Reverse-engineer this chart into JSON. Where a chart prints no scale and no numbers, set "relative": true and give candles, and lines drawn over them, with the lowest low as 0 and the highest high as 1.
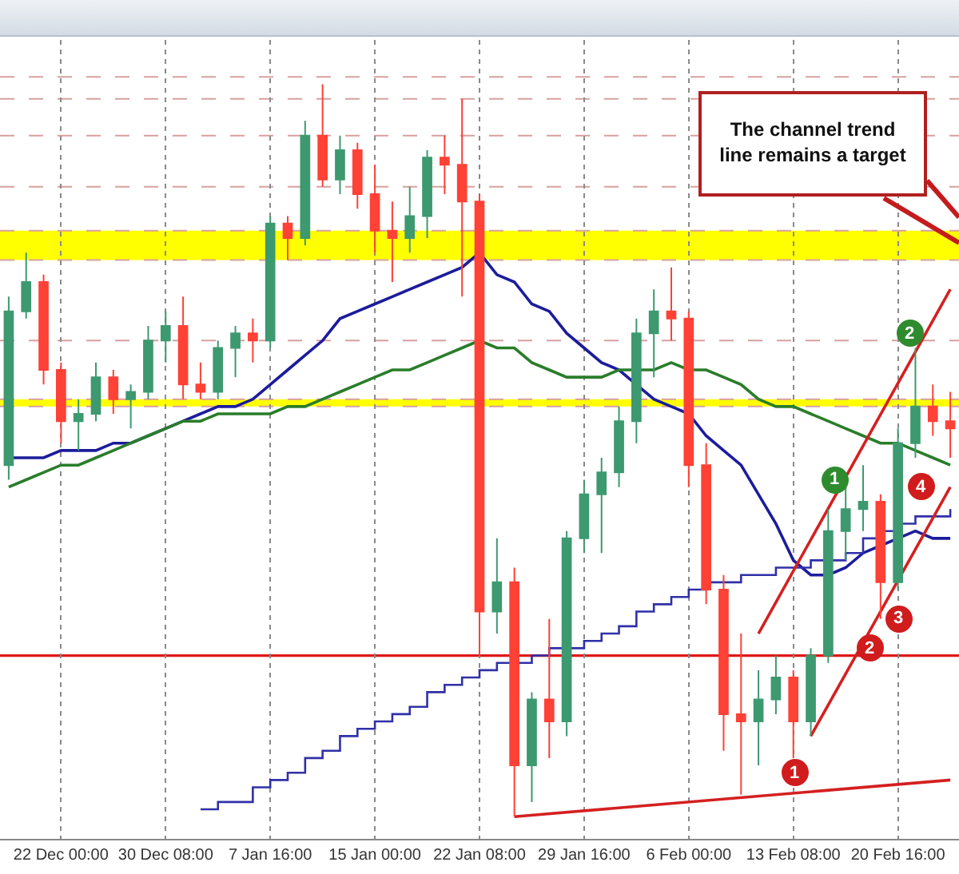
{
  "chart_data": {
    "type": "candlestick",
    "relative": true,
    "grid": "x",
    "categories": [
      null,
      null,
      null,
      "22 Dec 00:00",
      null,
      null,
      null,
      null,
      null,
      "30 Dec 08:00",
      null,
      null,
      null,
      null,
      null,
      "7 Jan 16:00",
      null,
      null,
      null,
      null,
      null,
      "15 Jan 00:00",
      null,
      null,
      null,
      null,
      null,
      "22 Jan 08:00",
      null,
      null,
      null,
      null,
      null,
      "29 Jan 16:00",
      null,
      null,
      null,
      null,
      null,
      "6 Feb 00:00",
      null,
      null,
      null,
      null,
      null,
      "13 Feb 08:00",
      null,
      null,
      null,
      null,
      null,
      "20 Feb 16:00",
      null,
      null,
      null
    ],
    "ohlc": [
      [
        0.48,
        0.71,
        0.46,
        0.69
      ],
      [
        0.69,
        0.77,
        0.68,
        0.73
      ],
      [
        0.73,
        0.74,
        0.59,
        0.61
      ],
      [
        0.61,
        0.62,
        0.51,
        0.54
      ],
      [
        0.54,
        0.57,
        0.5,
        0.55
      ],
      [
        0.55,
        0.62,
        0.54,
        0.6
      ],
      [
        0.6,
        0.61,
        0.55,
        0.57
      ],
      [
        0.57,
        0.59,
        0.53,
        0.58
      ],
      [
        0.58,
        0.67,
        0.57,
        0.65
      ],
      [
        0.65,
        0.69,
        0.62,
        0.67
      ],
      [
        0.67,
        0.71,
        0.57,
        0.59
      ],
      [
        0.59,
        0.62,
        0.57,
        0.58
      ],
      [
        0.58,
        0.65,
        0.57,
        0.64
      ],
      [
        0.64,
        0.67,
        0.6,
        0.66
      ],
      [
        0.66,
        0.68,
        0.62,
        0.65
      ],
      [
        0.65,
        0.82,
        0.64,
        0.81
      ],
      [
        0.81,
        0.82,
        0.76,
        0.79
      ],
      [
        0.79,
        0.95,
        0.78,
        0.93
      ],
      [
        0.93,
        1.0,
        0.86,
        0.87
      ],
      [
        0.87,
        0.93,
        0.85,
        0.91
      ],
      [
        0.91,
        0.92,
        0.83,
        0.85
      ],
      [
        0.85,
        0.89,
        0.77,
        0.8
      ],
      [
        0.8,
        0.84,
        0.73,
        0.79
      ],
      [
        0.79,
        0.86,
        0.77,
        0.82
      ],
      [
        0.82,
        0.91,
        0.79,
        0.9
      ],
      [
        0.9,
        0.93,
        0.85,
        0.89
      ],
      [
        0.89,
        0.98,
        0.71,
        0.84
      ],
      [
        0.84,
        0.85,
        0.22,
        0.28
      ],
      [
        0.28,
        0.38,
        0.25,
        0.32
      ],
      [
        0.32,
        0.34,
        0.0,
        0.07
      ],
      [
        0.07,
        0.17,
        0.02,
        0.16
      ],
      [
        0.16,
        0.27,
        0.08,
        0.13
      ],
      [
        0.13,
        0.39,
        0.11,
        0.38
      ],
      [
        0.38,
        0.46,
        0.36,
        0.44
      ],
      [
        0.44,
        0.49,
        0.36,
        0.47
      ],
      [
        0.47,
        0.56,
        0.45,
        0.54
      ],
      [
        0.54,
        0.68,
        0.51,
        0.66
      ],
      [
        0.66,
        0.72,
        0.6,
        0.69
      ],
      [
        0.69,
        0.75,
        0.65,
        0.68
      ],
      [
        0.68,
        0.69,
        0.45,
        0.48
      ],
      [
        0.48,
        0.51,
        0.29,
        0.31
      ],
      [
        0.31,
        0.33,
        0.09,
        0.14
      ],
      [
        0.14,
        0.25,
        0.03,
        0.13
      ],
      [
        0.13,
        0.2,
        0.07,
        0.16
      ],
      [
        0.16,
        0.22,
        0.14,
        0.19
      ],
      [
        0.19,
        0.2,
        0.08,
        0.13
      ],
      [
        0.13,
        0.23,
        0.11,
        0.22
      ],
      [
        0.22,
        0.42,
        0.21,
        0.39
      ],
      [
        0.39,
        0.45,
        0.35,
        0.42
      ],
      [
        0.42,
        0.48,
        0.39,
        0.43
      ],
      [
        0.43,
        0.44,
        0.27,
        0.32
      ],
      [
        0.32,
        0.53,
        0.31,
        0.51
      ],
      [
        0.51,
        0.64,
        0.49,
        0.56
      ],
      [
        0.56,
        0.59,
        0.52,
        0.54
      ],
      [
        0.54,
        0.58,
        0.49,
        0.53
      ]
    ],
    "series": [
      {
        "type": "line",
        "color": "#1c1c9c",
        "values": [
          0.49,
          0.49,
          0.49,
          0.5,
          0.5,
          0.5,
          0.51,
          0.51,
          0.52,
          0.53,
          0.54,
          0.55,
          0.56,
          0.56,
          0.57,
          0.59,
          0.61,
          0.63,
          0.65,
          0.68,
          0.69,
          0.7,
          0.71,
          0.72,
          0.73,
          0.74,
          0.75,
          0.77,
          0.74,
          0.73,
          0.7,
          0.69,
          0.66,
          0.64,
          0.62,
          0.61,
          0.59,
          0.57,
          0.56,
          0.55,
          0.52,
          0.5,
          0.48,
          0.44,
          0.4,
          0.35,
          0.33,
          0.33,
          0.34,
          0.36,
          0.37,
          0.38,
          0.39,
          0.38,
          0.38
        ]
      },
      {
        "type": "line",
        "color": "#2a7d2a",
        "values": [
          0.45,
          0.46,
          0.47,
          0.48,
          0.48,
          0.49,
          0.5,
          0.51,
          0.52,
          0.53,
          0.54,
          0.54,
          0.55,
          0.55,
          0.55,
          0.55,
          0.56,
          0.56,
          0.57,
          0.58,
          0.59,
          0.6,
          0.61,
          0.61,
          0.62,
          0.63,
          0.64,
          0.65,
          0.64,
          0.64,
          0.62,
          0.61,
          0.6,
          0.6,
          0.6,
          0.61,
          0.61,
          0.61,
          0.62,
          0.61,
          0.61,
          0.6,
          0.59,
          0.57,
          0.56,
          0.56,
          0.55,
          0.54,
          0.53,
          0.52,
          0.51,
          0.51,
          0.5,
          0.49,
          0.48
        ]
      },
      {
        "type": "step",
        "color": "#3030a8",
        "values": [
          null,
          null,
          null,
          null,
          null,
          null,
          null,
          null,
          null,
          null,
          null,
          0.01,
          0.02,
          0.02,
          0.04,
          0.05,
          0.06,
          0.08,
          0.09,
          0.11,
          0.12,
          0.13,
          0.14,
          0.15,
          0.17,
          0.18,
          0.19,
          0.2,
          0.21,
          0.21,
          0.22,
          0.23,
          0.23,
          0.24,
          0.25,
          0.26,
          0.28,
          0.29,
          0.3,
          0.31,
          0.32,
          0.32,
          0.33,
          0.33,
          0.34,
          0.34,
          0.35,
          0.35,
          0.36,
          0.38,
          0.39,
          0.4,
          0.41,
          0.41,
          0.42
        ]
      },
      {
        "type": "line",
        "color": "#d42020",
        "values": [
          null,
          null,
          null,
          null,
          null,
          null,
          null,
          null,
          null,
          null,
          null,
          null,
          null,
          null,
          null,
          null,
          null,
          null,
          null,
          null,
          null,
          null,
          null,
          null,
          null,
          null,
          null,
          null,
          null,
          0.0,
          null,
          null,
          null,
          null,
          null,
          null,
          null,
          null,
          null,
          null,
          null,
          null,
          null,
          null,
          null,
          null,
          null,
          null,
          null,
          null,
          null,
          null,
          null,
          null,
          0.05
        ]
      },
      {
        "type": "line",
        "color": "#d42020",
        "values": [
          null,
          null,
          null,
          null,
          null,
          null,
          null,
          null,
          null,
          null,
          null,
          null,
          null,
          null,
          null,
          null,
          null,
          null,
          null,
          null,
          null,
          null,
          null,
          null,
          null,
          null,
          null,
          null,
          null,
          null,
          null,
          null,
          null,
          null,
          null,
          null,
          null,
          null,
          null,
          null,
          null,
          null,
          null,
          null,
          null,
          null,
          0.11,
          null,
          null,
          null,
          null,
          null,
          null,
          null,
          0.45
        ]
      },
      {
        "type": "line",
        "color": "#d42020",
        "values": [
          null,
          null,
          null,
          null,
          null,
          null,
          null,
          null,
          null,
          null,
          null,
          null,
          null,
          null,
          null,
          null,
          null,
          null,
          null,
          null,
          null,
          null,
          null,
          null,
          null,
          null,
          null,
          null,
          null,
          null,
          null,
          null,
          null,
          null,
          null,
          null,
          null,
          null,
          null,
          null,
          null,
          null,
          null,
          0.25,
          null,
          null,
          null,
          null,
          null,
          null,
          null,
          null,
          null,
          null,
          0.72
        ]
      }
    ],
    "ref_lines": [
      {
        "axis": "y",
        "value": 0.22,
        "color": "#e01818",
        "line_style": "solid"
      },
      {
        "axis": "y",
        "value": 1.01,
        "color": "#d8a0a0",
        "line_style": "dashed"
      },
      {
        "axis": "y",
        "value": 0.98,
        "color": "#d8a0a0",
        "line_style": "dashed"
      },
      {
        "axis": "y",
        "value": 0.93,
        "color": "#d8a0a0",
        "line_style": "dashed"
      },
      {
        "axis": "y",
        "value": 0.86,
        "color": "#d8a0a0",
        "line_style": "dashed"
      },
      {
        "axis": "y",
        "value": 0.8,
        "color": "#d8a0a0",
        "line_style": "dashed"
      },
      {
        "axis": "y",
        "value": 0.76,
        "color": "#d8a0a0",
        "line_style": "dashed"
      },
      {
        "axis": "y",
        "value": 0.65,
        "color": "#d8a0a0",
        "line_style": "dashed"
      },
      {
        "axis": "y",
        "value": 0.57,
        "color": "#d8a0a0",
        "line_style": "dashed"
      },
      {
        "axis": "y",
        "value": 0.56,
        "color": "#d8a0a0",
        "line_style": "dashed"
      }
    ],
    "bands": [
      {
        "axis": "y",
        "from": 0.76,
        "to": 0.8,
        "color": "#ffff00"
      },
      {
        "axis": "y",
        "from": 0.56,
        "to": 0.57,
        "color": "#ffff00"
      }
    ],
    "annotations": [
      "The channel trend line remains a target",
      {
        "text": "1",
        "y": 0.46
      },
      {
        "text": "2",
        "y": 0.66
      },
      {
        "text": "1",
        "y": 0.06
      },
      {
        "text": "2",
        "y": 0.23
      },
      {
        "text": "3",
        "y": 0.27
      },
      {
        "text": "4",
        "y": 0.45
      }
    ]
  }
}
